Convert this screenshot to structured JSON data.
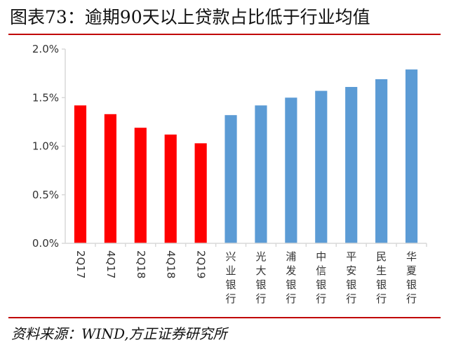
{
  "header": {
    "title": "图表73：逾期90天以上贷款占比低于行业均值"
  },
  "footer": {
    "source": "资料来源：WIND,方正证券研究所"
  },
  "colors": {
    "own": "#ff0000",
    "peer": "#5b9bd5",
    "axis": "#d9d9d9",
    "rule": "#c00000"
  },
  "chart_data": {
    "type": "bar",
    "title": "",
    "xlabel": "",
    "ylabel": "",
    "ylim": [
      0,
      0.02
    ],
    "y_ticks": [
      "0.0%",
      "0.5%",
      "1.0%",
      "1.5%",
      "2.0%"
    ],
    "grid": false,
    "legend": "none",
    "categories": [
      "2Q17",
      "4Q17",
      "2Q18",
      "4Q18",
      "2Q19",
      "兴业银行",
      "光大银行",
      "浦发银行",
      "中信银行",
      "平安银行",
      "民生银行",
      "华夏银行"
    ],
    "values": [
      0.0142,
      0.0133,
      0.0119,
      0.0112,
      0.0103,
      0.0132,
      0.0142,
      0.015,
      0.0157,
      0.0161,
      0.0169,
      0.0179
    ],
    "bar_colors": [
      "#ff0000",
      "#ff0000",
      "#ff0000",
      "#ff0000",
      "#ff0000",
      "#5b9bd5",
      "#5b9bd5",
      "#5b9bd5",
      "#5b9bd5",
      "#5b9bd5",
      "#5b9bd5",
      "#5b9bd5"
    ],
    "label_orientation": [
      "rotated",
      "rotated",
      "rotated",
      "rotated",
      "rotated",
      "vertical",
      "vertical",
      "vertical",
      "vertical",
      "vertical",
      "vertical",
      "vertical"
    ]
  }
}
